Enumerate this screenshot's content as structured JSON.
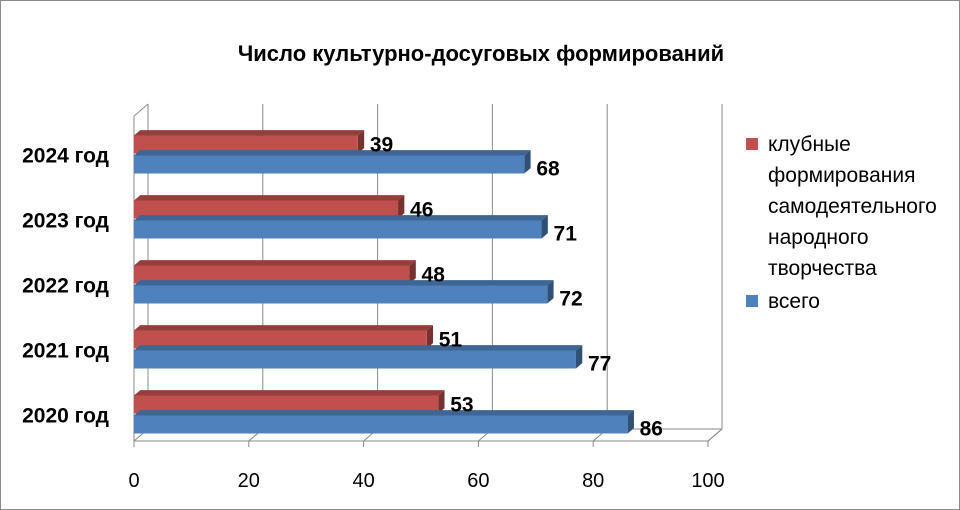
{
  "chart_data": {
    "type": "bar",
    "orientation": "horizontal",
    "title": "Число культурно-досуговых формирований",
    "xlabel": "",
    "ylabel": "",
    "categories": [
      "2024 год",
      "2023 год",
      "2022 год",
      "2021 год",
      "2020 год"
    ],
    "series": [
      {
        "name": "клубные формирования самодеятельного народного творчества",
        "values": [
          39,
          46,
          48,
          51,
          53
        ],
        "color": "#c0504d"
      },
      {
        "name": "всего",
        "values": [
          68,
          71,
          72,
          77,
          86
        ],
        "color": "#4f81bd"
      }
    ],
    "xlim": [
      0,
      100
    ],
    "ticks": [
      "0",
      "20",
      "40",
      "60",
      "80",
      "100"
    ],
    "grid": true,
    "legend": "right",
    "style": "3d"
  }
}
